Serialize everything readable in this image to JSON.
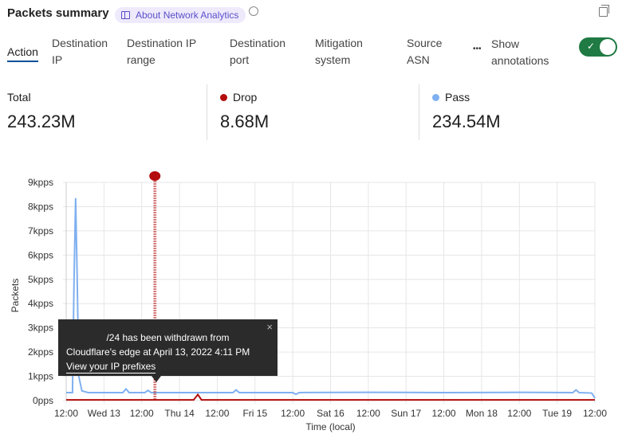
{
  "header": {
    "title": "Packets summary",
    "about_label": "About Network Analytics",
    "icons": [
      "book-icon",
      "clock-icon",
      "copy-icon"
    ]
  },
  "tabs": [
    {
      "label": "Action",
      "active": true
    },
    {
      "label": "Destination IP"
    },
    {
      "label": "Destination IP range"
    },
    {
      "label": "Destination port"
    },
    {
      "label": "Mitigation system"
    },
    {
      "label": "Source ASN"
    }
  ],
  "more_label": "•••",
  "annotations_toggle": {
    "label": "Show annotations",
    "on": true,
    "color": "#1f7a43"
  },
  "stats": [
    {
      "label": "Total",
      "value": "243.23M"
    },
    {
      "label": "Drop",
      "value": "8.68M",
      "color": "#b30d0d"
    },
    {
      "label": "Pass",
      "value": "234.54M",
      "color": "#7fb0f0"
    }
  ],
  "tooltip": {
    "line1": "/24 has been withdrawn from",
    "line2": "Cloudflare's edge at April 13, 2022 4:11 PM",
    "link": "View your IP prefixes"
  },
  "chart_data": {
    "type": "line",
    "xlabel": "Time (local)",
    "ylabel": "Packets",
    "x_range": [
      "2022-04-12T12:00",
      "2022-04-19T12:00"
    ],
    "ylim": [
      0,
      9000
    ],
    "y_ticks": [
      "0pps",
      "1kpps",
      "2kpps",
      "3kpps",
      "4kpps",
      "5kpps",
      "6kpps",
      "7kpps",
      "8kpps",
      "9kpps"
    ],
    "x_ticks": [
      "12:00",
      "Wed 13",
      "12:00",
      "Thu 14",
      "12:00",
      "Fri 15",
      "12:00",
      "Sat 16",
      "12:00",
      "Sun 17",
      "12:00",
      "Mon 18",
      "12:00",
      "Tue 19",
      "12:00"
    ],
    "grid": true,
    "annotation": {
      "time": "2022-04-13T16:11",
      "color": "#b30d0d"
    },
    "series": [
      {
        "name": "Pass",
        "color": "#7fb0f0",
        "points": [
          [
            "2022-04-12T12:00",
            330
          ],
          [
            "2022-04-12T14:00",
            330
          ],
          [
            "2022-04-12T14:30",
            5000
          ],
          [
            "2022-04-12T15:00",
            8350
          ],
          [
            "2022-04-12T15:30",
            5000
          ],
          [
            "2022-04-12T16:00",
            1000
          ],
          [
            "2022-04-12T17:00",
            400
          ],
          [
            "2022-04-12T19:00",
            330
          ],
          [
            "2022-04-13T06:00",
            330
          ],
          [
            "2022-04-13T07:00",
            480
          ],
          [
            "2022-04-13T08:00",
            330
          ],
          [
            "2022-04-13T13:00",
            330
          ],
          [
            "2022-04-13T14:00",
            420
          ],
          [
            "2022-04-13T15:00",
            330
          ],
          [
            "2022-04-14T12:00",
            330
          ],
          [
            "2022-04-14T17:00",
            330
          ],
          [
            "2022-04-14T18:00",
            440
          ],
          [
            "2022-04-14T19:00",
            330
          ],
          [
            "2022-04-15T12:00",
            330
          ],
          [
            "2022-04-15T13:00",
            260
          ],
          [
            "2022-04-15T14:00",
            330
          ],
          [
            "2022-04-16T12:00",
            340
          ],
          [
            "2022-04-17T12:00",
            330
          ],
          [
            "2022-04-18T12:00",
            340
          ],
          [
            "2022-04-19T05:00",
            330
          ],
          [
            "2022-04-19T06:00",
            440
          ],
          [
            "2022-04-19T07:00",
            330
          ],
          [
            "2022-04-19T11:00",
            310
          ],
          [
            "2022-04-19T12:00",
            100
          ]
        ]
      },
      {
        "name": "Drop",
        "color": "#b30d0d",
        "points": [
          [
            "2022-04-12T12:00",
            30
          ],
          [
            "2022-04-14T04:30",
            30
          ],
          [
            "2022-04-14T05:50",
            250
          ],
          [
            "2022-04-14T07:00",
            30
          ],
          [
            "2022-04-19T12:00",
            30
          ]
        ]
      }
    ]
  }
}
